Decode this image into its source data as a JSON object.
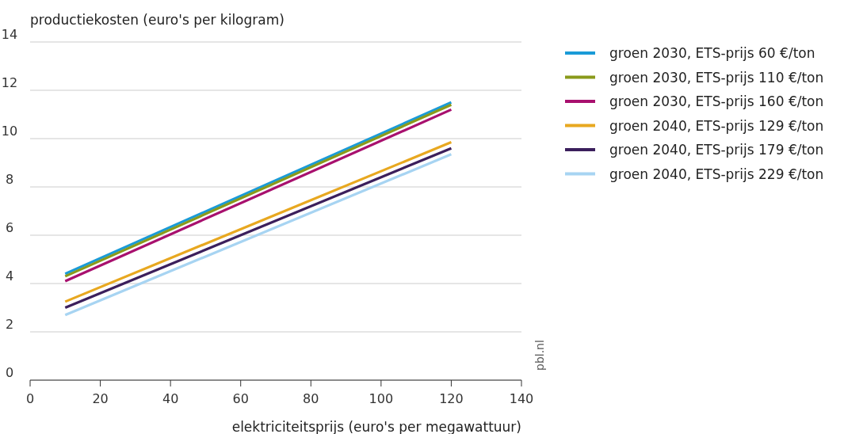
{
  "chart_data": {
    "type": "line",
    "ylabel": "productiekosten (euro's per kilogram)",
    "xlabel": "elektriciteitsprijs (euro's per megawattuur)",
    "x": [
      10,
      120
    ],
    "series": [
      {
        "name": "groen 2030, ETS-prijs 60 €/ton",
        "color": "#1a9bd7",
        "values": [
          4.4,
          11.5
        ]
      },
      {
        "name": "groen 2030, ETS-prijs 110 €/ton",
        "color": "#8a9a1b",
        "values": [
          4.3,
          11.4
        ]
      },
      {
        "name": "groen 2030, ETS-prijs 160 €/ton",
        "color": "#a8106e",
        "values": [
          4.1,
          11.2
        ]
      },
      {
        "name": "groen 2040, ETS-prijs 129 €/ton",
        "color": "#e8a820",
        "values": [
          3.25,
          9.85
        ]
      },
      {
        "name": "groen 2040, ETS-prijs 179 €/ton",
        "color": "#3b1f5c",
        "values": [
          3.0,
          9.6
        ]
      },
      {
        "name": "groen 2040, ETS-prijs 229 €/ton",
        "color": "#a7d4f2",
        "values": [
          2.7,
          9.35
        ]
      }
    ],
    "xlim": [
      0,
      140
    ],
    "xticks": [
      0,
      20,
      40,
      60,
      80,
      100,
      120,
      140
    ],
    "ylim": [
      0,
      14
    ],
    "yticks": [
      0,
      2,
      4,
      6,
      8,
      10,
      12,
      14
    ],
    "grid": "y",
    "legend": "right",
    "marker": "none",
    "line_style": "solid",
    "annotations": [
      "pbl.nl"
    ]
  }
}
